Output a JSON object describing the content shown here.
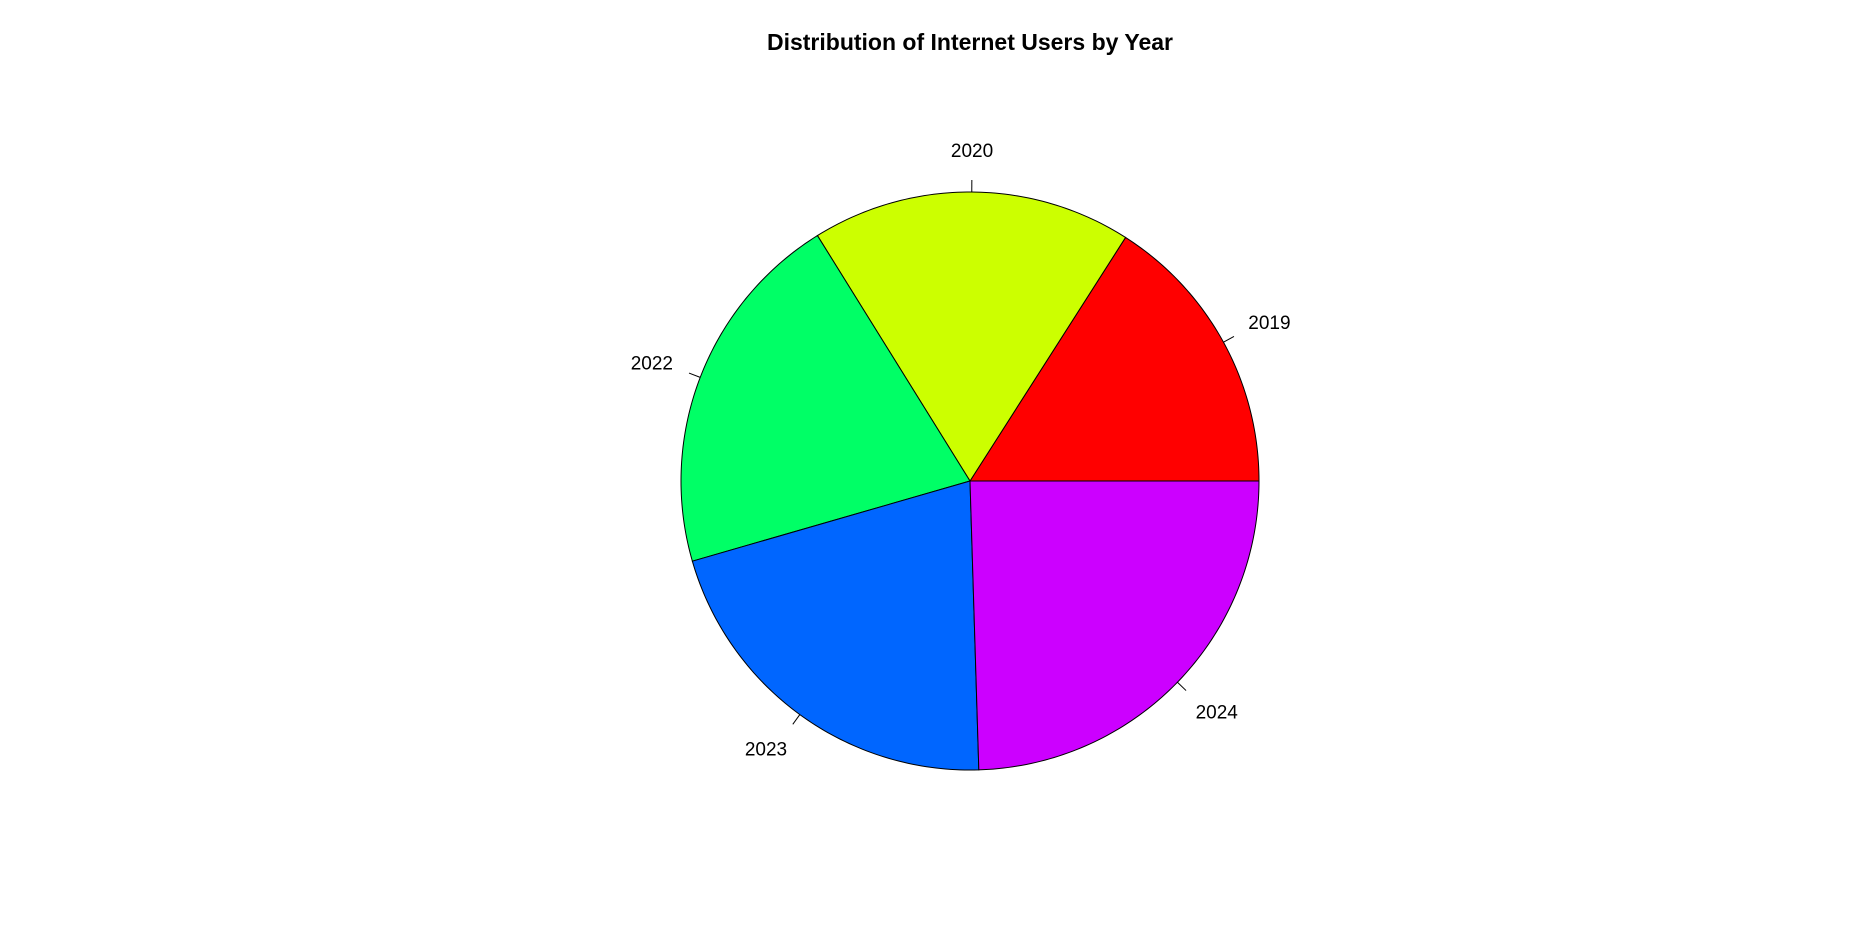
{
  "chart_data": {
    "type": "pie",
    "title": "Distribution of Internet Users by Year",
    "start_angle_deg": 0,
    "direction": "counterclockwise",
    "slices": [
      {
        "label": "2019",
        "value": 4.1,
        "color": "#FF0000"
      },
      {
        "label": "2020",
        "value": 4.6,
        "color": "#CCFF00"
      },
      {
        "label": "2022",
        "value": 5.3,
        "color": "#00FF66"
      },
      {
        "label": "2023",
        "value": 5.4,
        "color": "#0066FF"
      },
      {
        "label": "2024",
        "value": 6.3,
        "color": "#CC00FF"
      }
    ]
  }
}
